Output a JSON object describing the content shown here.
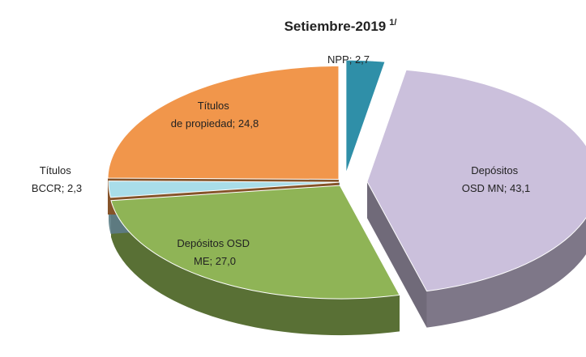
{
  "chart_data": {
    "type": "pie3d",
    "title": "Setiembre-2019",
    "title_note": "1/",
    "values": [
      2.7,
      43.1,
      27.0,
      2.3,
      24.8
    ],
    "value_labels": [
      "NPP; 2,7",
      "Depósitos OSD MN; 43,1",
      "Depósitos OSD ME; 27,0",
      "Títulos BCCR; 2,3",
      "Títulos de propiedad; 24,8"
    ],
    "colors": [
      "#2f8fa8",
      "#cbc0dc",
      "#8fb456",
      "#a9dde9",
      "#f1964b"
    ]
  }
}
